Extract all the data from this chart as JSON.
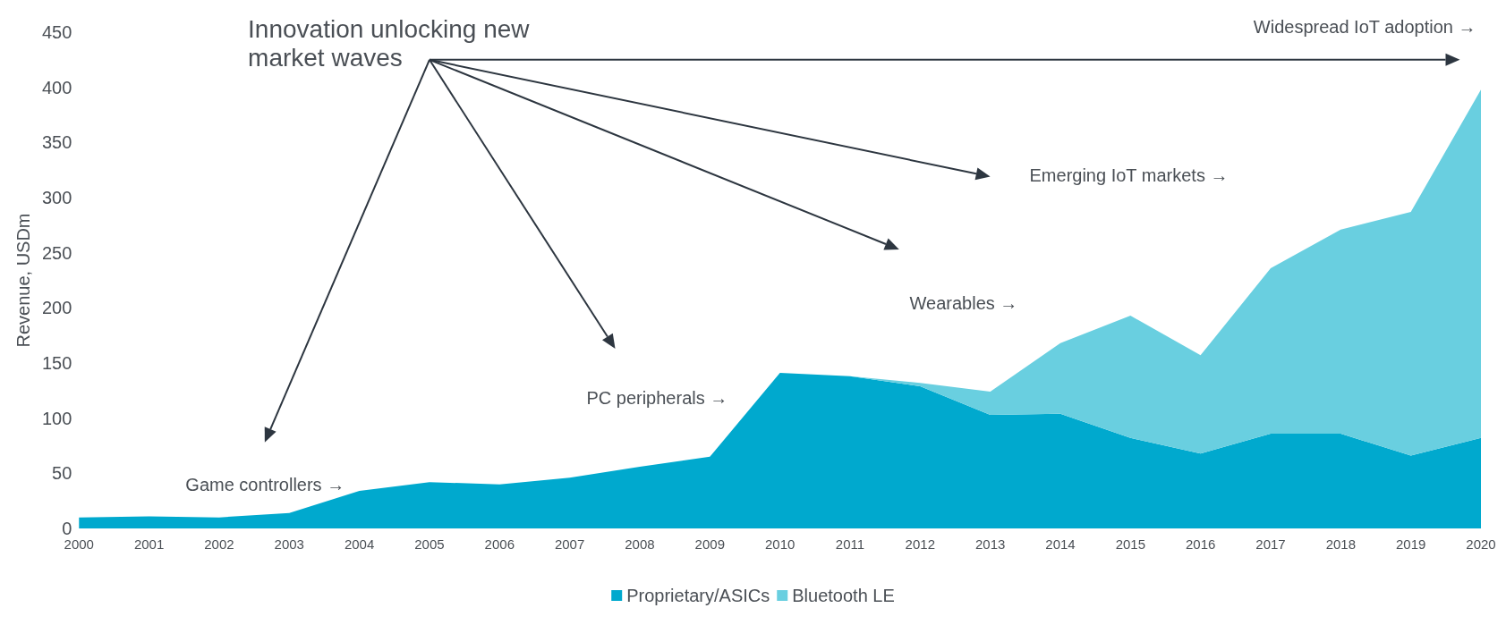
{
  "chart_data": {
    "type": "area",
    "stacked": true,
    "ylabel": "Revenue, USDm",
    "categories": [
      "2000",
      "2001",
      "2002",
      "2003",
      "2004",
      "2005",
      "2006",
      "2007",
      "2008",
      "2009",
      "2010",
      "2011",
      "2012",
      "2013",
      "2014",
      "2015",
      "2016",
      "2017",
      "2018",
      "2019",
      "2020"
    ],
    "series": [
      {
        "name": "Proprietary/ASICs",
        "color": "#00a9ce",
        "values": [
          10,
          11,
          10,
          14,
          34,
          42,
          40,
          46,
          56,
          65,
          141,
          138,
          129,
          103,
          104,
          82,
          68,
          86,
          86,
          66,
          82
        ]
      },
      {
        "name": "Bluetooth LE",
        "color": "#69cfe0",
        "values": [
          null,
          null,
          null,
          null,
          null,
          null,
          null,
          null,
          null,
          null,
          null,
          0,
          3,
          21,
          64,
          111,
          89,
          150,
          185,
          221,
          316
        ]
      }
    ],
    "ylim": [
      0,
      450
    ],
    "yticks": [
      0,
      50,
      100,
      150,
      200,
      250,
      300,
      350,
      400,
      450
    ],
    "grid": false,
    "legend": "bottom",
    "annotations": [
      "Innovation unlocking new market waves",
      "Game controllers →",
      "PC peripherals →",
      "Wearables →",
      "Emerging IoT markets →",
      "Widespread IoT adoption →"
    ]
  }
}
